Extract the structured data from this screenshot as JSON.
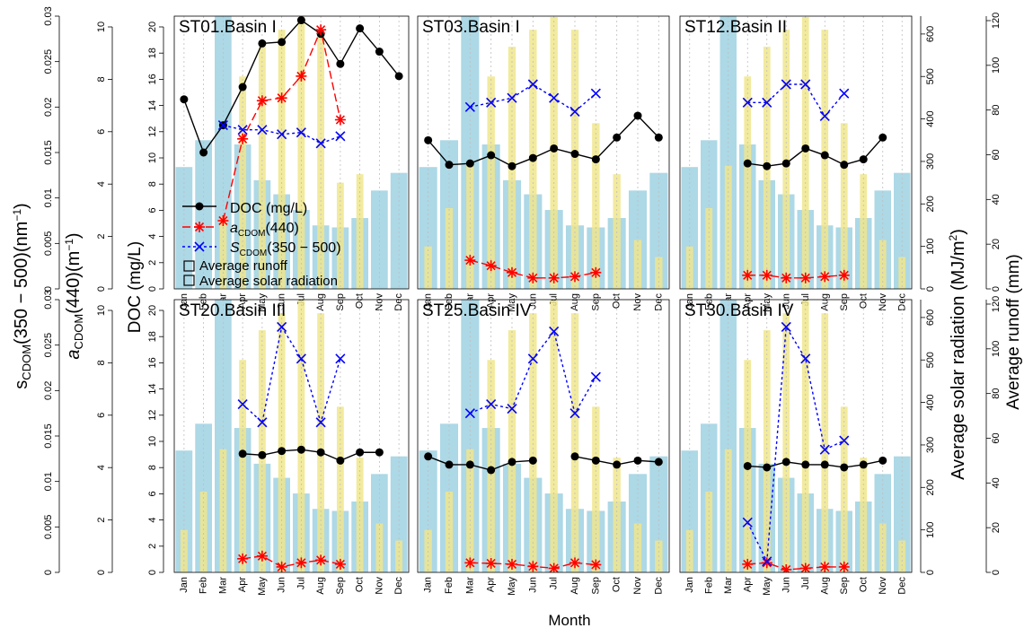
{
  "figure": {
    "xlabel": "Month",
    "months": [
      "Jan",
      "Feb",
      "Mar",
      "Apr",
      "May",
      "Jun",
      "Jul",
      "Aug",
      "Sep",
      "Oct",
      "Nov",
      "Dec"
    ],
    "legend": {
      "doc": "DOC (mg/L)",
      "acdom_main": "a",
      "acdom_sub": "CDOM",
      "acdom_tail": "(440)",
      "scdom_main": "S",
      "scdom_sub": "CDOM",
      "scdom_tail": "(350 − 500)",
      "runoff": "Average runoff",
      "radiation": "Average solar radiation"
    },
    "left_axes": {
      "s_label_main": "s",
      "s_label_sub": "CDOM",
      "s_label_tail": "(350 − 500)(nm",
      "s_label_sup": "−1",
      "s_label_end": ")",
      "s_ticks": [
        "0",
        "0.005",
        "0.01",
        "0.015",
        "0.02",
        "0.025",
        "0.03"
      ],
      "a_label_main": "a",
      "a_label_sub": "CDOM",
      "a_label_tail": "(440)(m",
      "a_label_sup": "−1",
      "a_label_end": ")",
      "a_ticks": [
        "0",
        "2",
        "4",
        "6",
        "8",
        "10"
      ],
      "doc_label": "DOC (mg/L)",
      "doc_ticks": [
        "0",
        "2",
        "4",
        "6",
        "8",
        "10",
        "12",
        "14",
        "16",
        "18",
        "20"
      ]
    },
    "right_axes": {
      "rad_label_main": "Average solar radiation (MJ/m",
      "rad_label_sup": "2",
      "rad_label_end": ")",
      "rad_ticks": [
        "0",
        "100",
        "200",
        "300",
        "400",
        "500",
        "600"
      ],
      "runoff_label": "Average runoff (mm)",
      "runoff_ticks": [
        "0",
        "20",
        "40",
        "60",
        "80",
        "100",
        "120"
      ]
    },
    "colors": {
      "runoff": "#add8e6",
      "radiation": "#f0e68c",
      "doc": "#000000",
      "acdom": "#ff0000",
      "scdom": "#0000ff",
      "grid": "#bebebe"
    }
  },
  "chart_data": [
    {
      "type": "bar+line",
      "title": "ST01.Basin I",
      "runoff": [
        54.5,
        66.5,
        122,
        64.6,
        48.6,
        42.3,
        35.3,
        28.4,
        27.5,
        31.7,
        44,
        51.9
      ],
      "radiation": [
        0,
        0,
        170,
        500,
        570,
        610,
        640,
        610,
        250,
        270,
        0,
        0
      ],
      "doc": [
        13.9,
        10.0,
        12.0,
        14.8,
        18.0,
        18.1,
        19.7,
        18.7,
        16.5,
        19.1,
        17.4,
        15.6
      ],
      "acdom": [
        null,
        null,
        2.5,
        5.5,
        6.9,
        7.0,
        7.8,
        9.5,
        6.2,
        null,
        null,
        null
      ],
      "scdom": [
        null,
        null,
        0.018,
        0.0175,
        0.0175,
        0.017,
        0.0172,
        0.016,
        0.0168,
        null,
        null,
        null
      ]
    },
    {
      "type": "bar+line",
      "title": "ST03.Basin I",
      "runoff": [
        54.5,
        66.5,
        122,
        64.6,
        48.6,
        42.3,
        35.3,
        28.4,
        27.5,
        31.7,
        44,
        51.9
      ],
      "radiation": [
        100,
        190,
        290,
        500,
        570,
        610,
        640,
        610,
        390,
        270,
        115,
        75
      ],
      "doc": [
        10.9,
        9.1,
        9.2,
        9.8,
        9.0,
        9.6,
        10.3,
        9.9,
        9.5,
        11.1,
        12.7,
        11.1
      ],
      "acdom": [
        null,
        null,
        1.05,
        0.85,
        0.6,
        0.4,
        0.4,
        0.45,
        0.6,
        null,
        null,
        null
      ],
      "scdom": [
        null,
        null,
        0.02,
        0.0205,
        0.021,
        0.0225,
        0.021,
        0.0195,
        0.0215,
        null,
        null,
        null
      ]
    },
    {
      "type": "bar+line",
      "title": "ST12.Basin II",
      "runoff": [
        54.5,
        66.5,
        122,
        64.6,
        48.6,
        42.3,
        35.3,
        28.4,
        27.5,
        31.7,
        44,
        51.9
      ],
      "radiation": [
        100,
        190,
        290,
        500,
        570,
        610,
        640,
        610,
        390,
        270,
        115,
        75
      ],
      "doc": [
        null,
        null,
        null,
        9.2,
        9.0,
        9.2,
        10.3,
        9.8,
        9.1,
        9.5,
        11.1,
        null
      ],
      "acdom": [
        null,
        null,
        null,
        0.5,
        0.5,
        0.4,
        0.4,
        0.45,
        0.5,
        null,
        null,
        null
      ],
      "scdom": [
        null,
        null,
        null,
        0.0205,
        0.0205,
        0.0225,
        0.0225,
        0.019,
        0.0215,
        null,
        null,
        null
      ]
    },
    {
      "type": "bar+line",
      "title": "ST20.Basin III",
      "runoff": [
        54.5,
        66.5,
        122,
        64.6,
        48.6,
        42.3,
        35.3,
        28.4,
        27.5,
        31.7,
        44,
        51.9
      ],
      "radiation": [
        100,
        190,
        290,
        500,
        570,
        610,
        640,
        610,
        390,
        270,
        115,
        75
      ],
      "doc": [
        null,
        null,
        null,
        8.7,
        8.6,
        8.9,
        9.0,
        8.8,
        8.2,
        8.8,
        8.8,
        null
      ],
      "acdom": [
        null,
        null,
        null,
        0.5,
        0.6,
        0.2,
        0.35,
        0.45,
        0.3,
        null,
        null,
        null
      ],
      "scdom": [
        null,
        null,
        null,
        0.0185,
        0.0165,
        0.027,
        0.0235,
        0.0165,
        0.0235,
        null,
        null,
        null
      ]
    },
    {
      "type": "bar+line",
      "title": "ST25.Basin IV",
      "runoff": [
        54.5,
        66.5,
        122,
        64.6,
        48.6,
        42.3,
        35.3,
        28.4,
        27.5,
        31.7,
        44,
        51.9
      ],
      "radiation": [
        100,
        190,
        290,
        500,
        570,
        610,
        640,
        610,
        390,
        270,
        115,
        75
      ],
      "doc": [
        8.5,
        7.9,
        7.9,
        7.5,
        8.1,
        8.2,
        null,
        8.5,
        8.2,
        7.9,
        8.2,
        8.1
      ],
      "acdom": [
        null,
        null,
        0.35,
        0.33,
        0.3,
        0.22,
        0.15,
        0.35,
        0.28,
        null,
        null,
        null
      ],
      "scdom": [
        null,
        null,
        0.0175,
        0.0185,
        0.018,
        0.0235,
        0.0265,
        0.0175,
        0.0215,
        null,
        null,
        null
      ]
    },
    {
      "type": "bar+line",
      "title": "ST30.Basin IV",
      "runoff": [
        54.5,
        66.5,
        122,
        64.6,
        48.6,
        42.3,
        35.3,
        28.4,
        27.5,
        31.7,
        44,
        51.9
      ],
      "radiation": [
        100,
        190,
        290,
        500,
        570,
        610,
        640,
        610,
        390,
        270,
        115,
        75
      ],
      "doc": [
        null,
        null,
        null,
        7.8,
        7.7,
        8.1,
        7.9,
        7.9,
        7.7,
        7.9,
        8.2,
        null
      ],
      "acdom": [
        null,
        null,
        null,
        0.3,
        0.35,
        0.1,
        0.15,
        0.2,
        0.2,
        null,
        null,
        null
      ],
      "scdom": [
        null,
        null,
        null,
        0.0055,
        0.0012,
        0.027,
        0.0235,
        0.0135,
        0.0145,
        null,
        null,
        null
      ]
    }
  ]
}
